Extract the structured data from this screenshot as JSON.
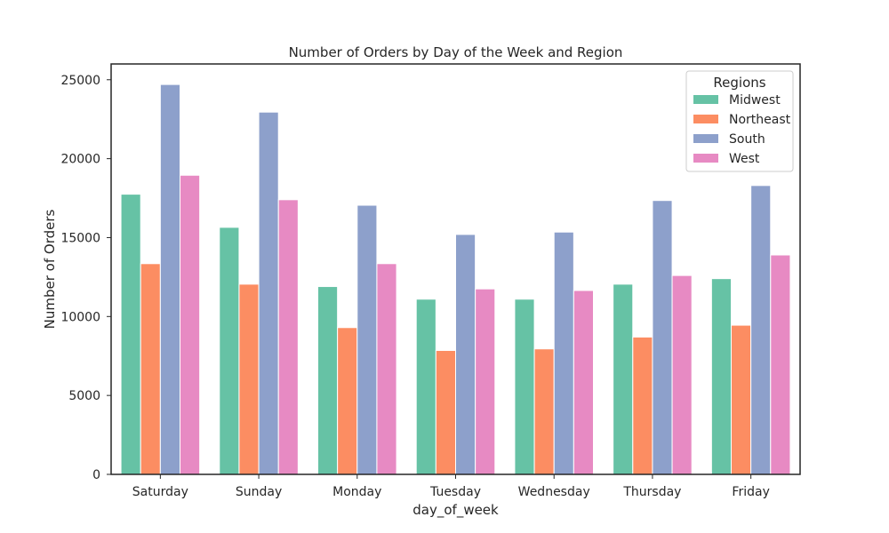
{
  "chart_data": {
    "type": "bar",
    "title": "Number of Orders by Day of the Week and Region",
    "xlabel": "day_of_week",
    "ylabel": "Number of Orders",
    "categories": [
      "Saturday",
      "Sunday",
      "Monday",
      "Tuesday",
      "Wednesday",
      "Thursday",
      "Friday"
    ],
    "ylim": [
      0,
      26000
    ],
    "yticks": [
      0,
      5000,
      10000,
      15000,
      20000,
      25000
    ],
    "grid": false,
    "legend": {
      "title": "Regions",
      "placement": "top-right"
    },
    "series": [
      {
        "name": "Midwest",
        "color": "#66c2a5",
        "values": [
          17750,
          15650,
          11900,
          11100,
          11100,
          12050,
          12400
        ]
      },
      {
        "name": "Northeast",
        "color": "#fc8d62",
        "values": [
          13350,
          12050,
          9300,
          7850,
          7950,
          8700,
          9450
        ]
      },
      {
        "name": "South",
        "color": "#8da0cb",
        "values": [
          24700,
          22950,
          17050,
          15200,
          15350,
          17350,
          18300
        ]
      },
      {
        "name": "West",
        "color": "#e78ac3",
        "values": [
          18950,
          17400,
          13350,
          11750,
          11650,
          12600,
          13900
        ]
      }
    ]
  }
}
